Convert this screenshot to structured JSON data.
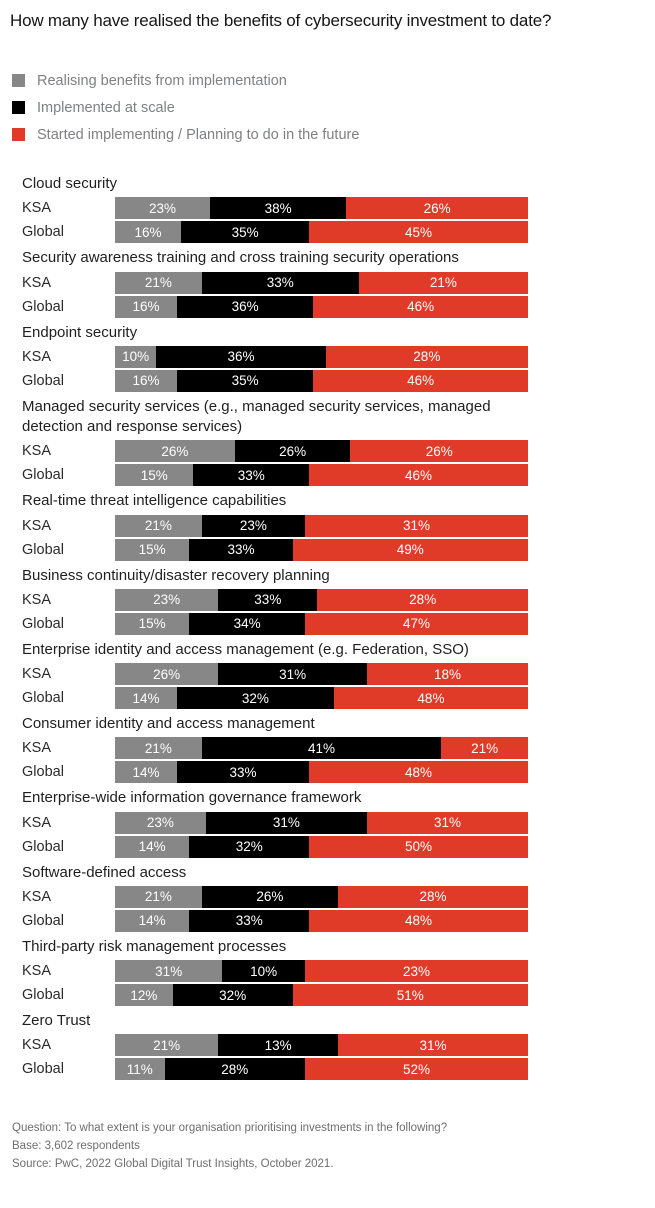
{
  "title": "How many have realised the benefits of cybersecurity investment to date?",
  "colors": {
    "realising": "#878787",
    "implemented": "#000000",
    "started": "#E03A28",
    "title_text": "#161616",
    "legend_text": "#7f8083",
    "footnote_text": "#6e6e6e"
  },
  "legend": {
    "items": [
      {
        "label": "Realising benefits from implementation",
        "key": "realising"
      },
      {
        "label": "Implemented at scale",
        "key": "implemented"
      },
      {
        "label": "Started implementing / Planning to do in the future",
        "key": "started"
      }
    ]
  },
  "chart_data": {
    "type": "bar",
    "subtype": "horizontal-stacked",
    "unit": "%",
    "legend_position": "top-left",
    "series": [
      "Realising benefits from implementation",
      "Implemented at scale",
      "Started implementing / Planning to do in the future"
    ],
    "groups": [
      "KSA",
      "Global"
    ],
    "value_suffix": "%",
    "topics": [
      {
        "label": "Cloud security",
        "rows": [
          {
            "group": "KSA",
            "values": [
              23,
              38,
              26
            ],
            "seg_widths_pct": [
              23,
              33,
              44
            ]
          },
          {
            "group": "Global",
            "values": [
              16,
              35,
              45
            ],
            "seg_widths_pct": [
              16,
              31,
              53
            ]
          }
        ]
      },
      {
        "label": "Security awareness training and cross training security operations",
        "rows": [
          {
            "group": "KSA",
            "values": [
              21,
              33,
              21
            ],
            "seg_widths_pct": [
              21,
              38,
              41
            ]
          },
          {
            "group": "Global",
            "values": [
              16,
              36,
              46
            ],
            "seg_widths_pct": [
              15,
              33,
              52
            ]
          }
        ]
      },
      {
        "label": "Endpoint security",
        "rows": [
          {
            "group": "KSA",
            "values": [
              10,
              36,
              28
            ],
            "seg_widths_pct": [
              10,
              41,
              49
            ]
          },
          {
            "group": "Global",
            "values": [
              16,
              35,
              46
            ],
            "seg_widths_pct": [
              15,
              33,
              52
            ]
          }
        ]
      },
      {
        "label": "Managed security services (e.g., managed security services, managed detection and response services)",
        "rows": [
          {
            "group": "KSA",
            "values": [
              26,
              26,
              26
            ],
            "seg_widths_pct": [
              29,
              28,
              43
            ]
          },
          {
            "group": "Global",
            "values": [
              15,
              33,
              46
            ],
            "seg_widths_pct": [
              19,
              28,
              53
            ]
          }
        ]
      },
      {
        "label": "Real-time threat intelligence capabilities",
        "rows": [
          {
            "group": "KSA",
            "values": [
              21,
              23,
              31
            ],
            "seg_widths_pct": [
              21,
              25,
              54
            ]
          },
          {
            "group": "Global",
            "values": [
              15,
              33,
              49
            ],
            "seg_widths_pct": [
              18,
              25,
              57
            ]
          }
        ]
      },
      {
        "label": "Business continuity/disaster recovery planning",
        "rows": [
          {
            "group": "KSA",
            "values": [
              23,
              33,
              28
            ],
            "seg_widths_pct": [
              25,
              24,
              51
            ]
          },
          {
            "group": "Global",
            "values": [
              15,
              34,
              47
            ],
            "seg_widths_pct": [
              18,
              28,
              54
            ]
          }
        ]
      },
      {
        "label": "Enterprise identity and access management (e.g. Federation, SSO)",
        "rows": [
          {
            "group": "KSA",
            "values": [
              26,
              31,
              18
            ],
            "seg_widths_pct": [
              25,
              36,
              39
            ]
          },
          {
            "group": "Global",
            "values": [
              14,
              32,
              48
            ],
            "seg_widths_pct": [
              15,
              38,
              47
            ]
          }
        ]
      },
      {
        "label": "Consumer identity and access management",
        "rows": [
          {
            "group": "KSA",
            "values": [
              21,
              41,
              21
            ],
            "seg_widths_pct": [
              21,
              58,
              21
            ]
          },
          {
            "group": "Global",
            "values": [
              14,
              33,
              48
            ],
            "seg_widths_pct": [
              15,
              32,
              53
            ]
          }
        ]
      },
      {
        "label": "Enterprise-wide information governance framework",
        "rows": [
          {
            "group": "KSA",
            "values": [
              23,
              31,
              31
            ],
            "seg_widths_pct": [
              22,
              39,
              39
            ]
          },
          {
            "group": "Global",
            "values": [
              14,
              32,
              50
            ],
            "seg_widths_pct": [
              18,
              29,
              53
            ]
          }
        ]
      },
      {
        "label": "Software-defined access",
        "rows": [
          {
            "group": "KSA",
            "values": [
              21,
              26,
              28
            ],
            "seg_widths_pct": [
              21,
              33,
              46
            ]
          },
          {
            "group": "Global",
            "values": [
              14,
              33,
              48
            ],
            "seg_widths_pct": [
              18,
              29,
              53
            ]
          }
        ]
      },
      {
        "label": "Third-party risk management processes",
        "rows": [
          {
            "group": "KSA",
            "values": [
              31,
              10,
              23
            ],
            "seg_widths_pct": [
              26,
              20,
              54
            ]
          },
          {
            "group": "Global",
            "values": [
              12,
              32,
              51
            ],
            "seg_widths_pct": [
              14,
              29,
              57
            ]
          }
        ]
      },
      {
        "label": "Zero Trust",
        "rows": [
          {
            "group": "KSA",
            "values": [
              21,
              13,
              31
            ],
            "seg_widths_pct": [
              25,
              29,
              46
            ]
          },
          {
            "group": "Global",
            "values": [
              11,
              28,
              52
            ],
            "seg_widths_pct": [
              12,
              34,
              54
            ]
          }
        ]
      }
    ]
  },
  "footnotes": [
    "Question: To what extent is your organisation prioritising investments in the following?",
    "Base: 3,602 respondents",
    "Source: PwC, 2022 Global Digital Trust Insights, October 2021."
  ]
}
